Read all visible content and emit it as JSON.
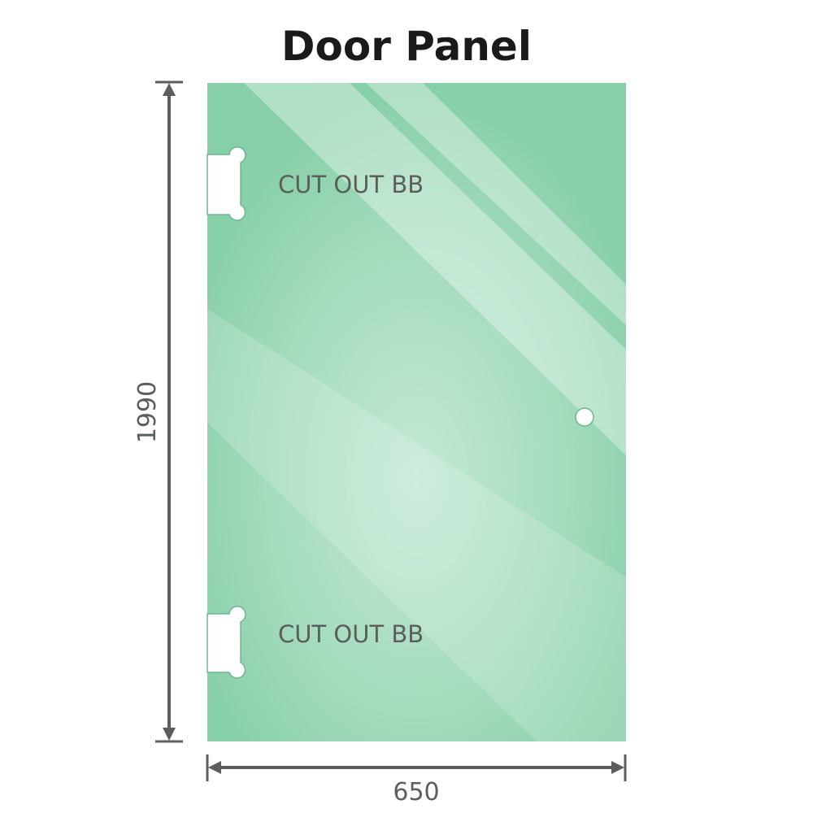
{
  "title": "Door Panel",
  "dimensions": {
    "height": "1990",
    "width": "650"
  },
  "cutouts": [
    {
      "label": "CUT OUT BB"
    },
    {
      "label": "CUT OUT BB"
    }
  ],
  "colors": {
    "glass": "#86cfa8",
    "glass_light": "#bfe6d2",
    "dimension_line": "#5d5d5d",
    "title": "#1a1a1a"
  }
}
